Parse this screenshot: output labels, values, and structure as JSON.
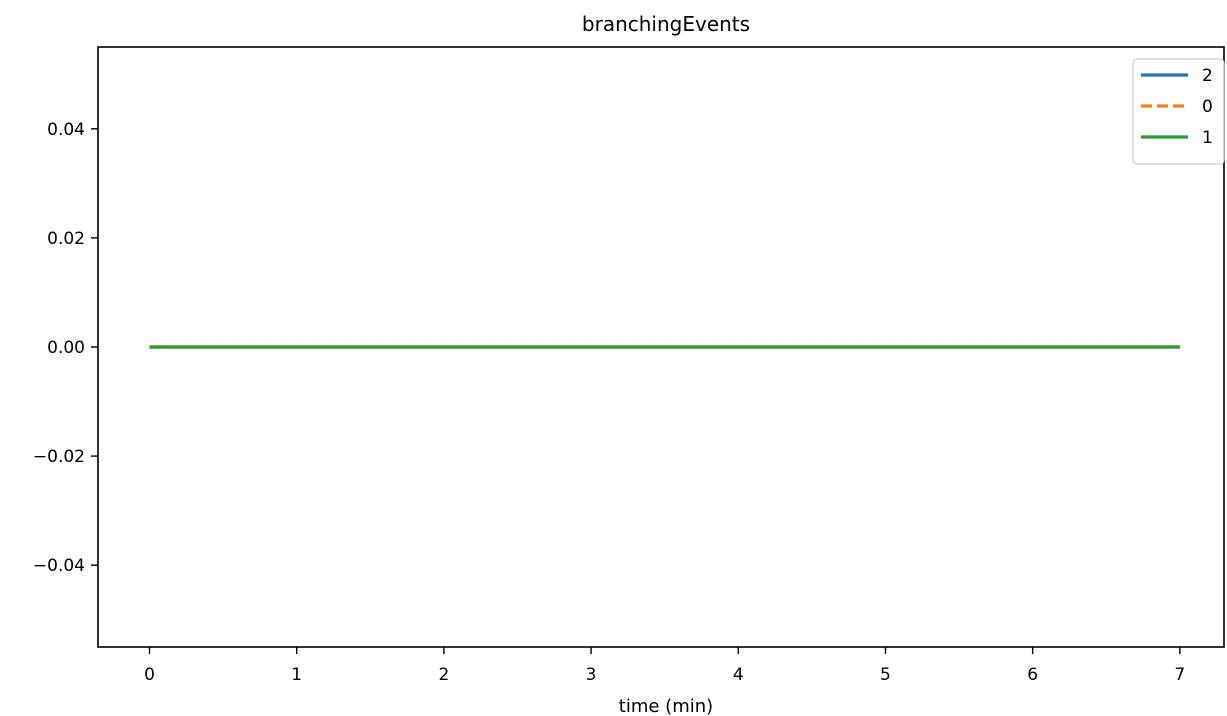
{
  "chart_data": {
    "type": "line",
    "title": "branchingEvents",
    "xlabel": "time (min)",
    "ylabel": "",
    "xlim": [
      -0.35,
      7.3
    ],
    "ylim": [
      -0.055,
      0.055
    ],
    "xticks": [
      0,
      1,
      2,
      3,
      4,
      5,
      6,
      7
    ],
    "yticks": [
      0.04,
      0.02,
      0.0,
      -0.02,
      -0.04
    ],
    "xtick_labels": [
      "0",
      "1",
      "2",
      "3",
      "4",
      "5",
      "6",
      "7"
    ],
    "ytick_labels": [
      "0.04",
      "0.02",
      "0.00",
      "−0.02",
      "−0.04"
    ],
    "grid": false,
    "legend_position": "top-right",
    "series": [
      {
        "name": "2",
        "color": "#1f77b4",
        "style": "solid",
        "x": [
          0,
          7
        ],
        "y": [
          0,
          0
        ]
      },
      {
        "name": "0",
        "color": "#ff7f0e",
        "style": "dashed",
        "x": [
          0,
          7
        ],
        "y": [
          0,
          0
        ]
      },
      {
        "name": "1",
        "color": "#2ca02c",
        "style": "solid",
        "x": [
          0,
          7
        ],
        "y": [
          0,
          0
        ]
      }
    ]
  }
}
